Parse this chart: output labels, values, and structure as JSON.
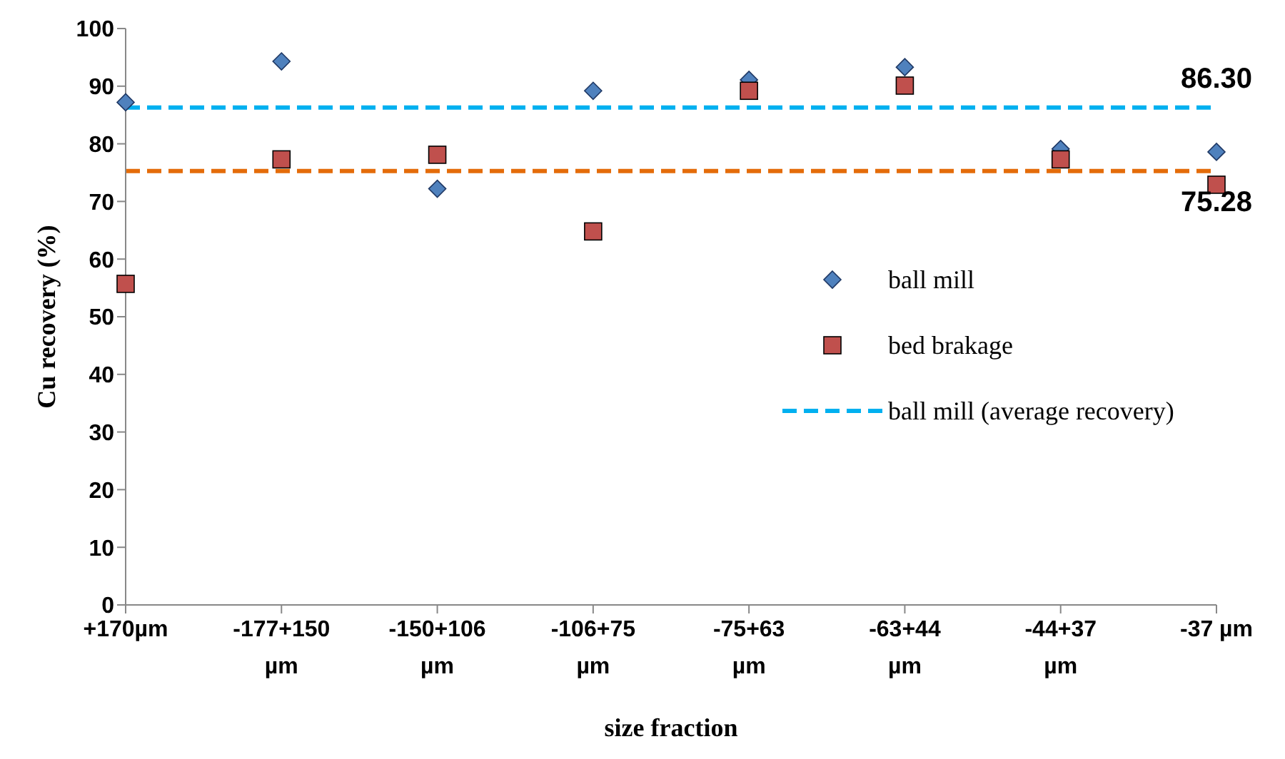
{
  "chart_data": {
    "type": "scatter",
    "xlabel": "size fraction",
    "ylabel": "Cu recovery (%)",
    "categories": [
      "+170µm",
      "-177+150 µm",
      "-150+106 µm",
      "-106+75 µm",
      "-75+63 µm",
      "-63+44 µm",
      "-44+37 µm",
      "-37 µm"
    ],
    "series": [
      {
        "name": "ball mill",
        "marker": "diamond",
        "color": "#4f81bd",
        "values": [
          87.2,
          94.3,
          72.2,
          89.2,
          91.1,
          93.3,
          79.1,
          78.6
        ]
      },
      {
        "name": "bed brakage",
        "marker": "square",
        "color": "#c0504d",
        "values": [
          55.7,
          77.3,
          78.1,
          64.8,
          89.2,
          90.1,
          77.3,
          72.9
        ]
      },
      {
        "name": "ball mill (average recovery)",
        "type": "line",
        "line_style": "dashed",
        "color": "#00b0f0",
        "values": [
          86.3,
          86.3,
          86.3,
          86.3,
          86.3,
          86.3,
          86.3,
          86.3
        ]
      },
      {
        "type": "line",
        "line_style": "dashed",
        "color": "#e46c0a",
        "values": [
          75.28,
          75.28,
          75.28,
          75.28,
          75.28,
          75.28,
          75.28,
          75.28
        ]
      }
    ],
    "ylim": [
      0,
      100
    ],
    "yticks": [
      0,
      10,
      20,
      30,
      40,
      50,
      60,
      70,
      80,
      90,
      100
    ],
    "grid": false,
    "legend": "right",
    "annotations": [
      {
        "text": "86.30",
        "x": "-37 µm",
        "y": 86.3
      },
      {
        "text": "75.28",
        "x": "-37 µm",
        "y": 75.28
      }
    ]
  }
}
